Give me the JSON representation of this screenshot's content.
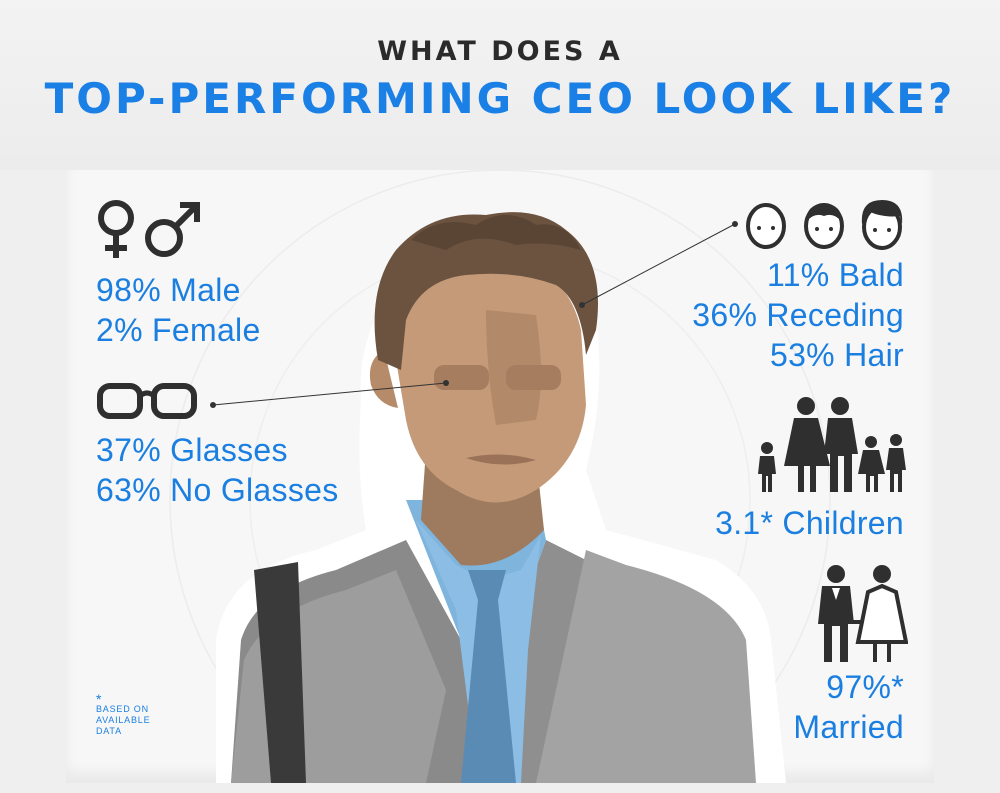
{
  "header": {
    "line1": "WHAT DOES A",
    "line2": "TOP-PERFORMING CEO LOOK LIKE?"
  },
  "stats": {
    "gender": {
      "male": "98% Male",
      "female": "2% Female"
    },
    "glasses": {
      "yes": "37% Glasses",
      "no": "63% No Glasses"
    },
    "hair": {
      "bald": "11% Bald",
      "receding": "36% Receding",
      "hair": "53% Hair"
    },
    "children": {
      "label": "3.1* Children"
    },
    "married": {
      "pct": "97%*",
      "label": "Married"
    }
  },
  "footnote": {
    "star": "*",
    "line1": "BASED ON",
    "line2": "AVAILABLE",
    "line3": "DATA"
  },
  "colors": {
    "accent": "#1a80e6",
    "icon": "#2f2f2f",
    "title": "#2b2b2b"
  }
}
